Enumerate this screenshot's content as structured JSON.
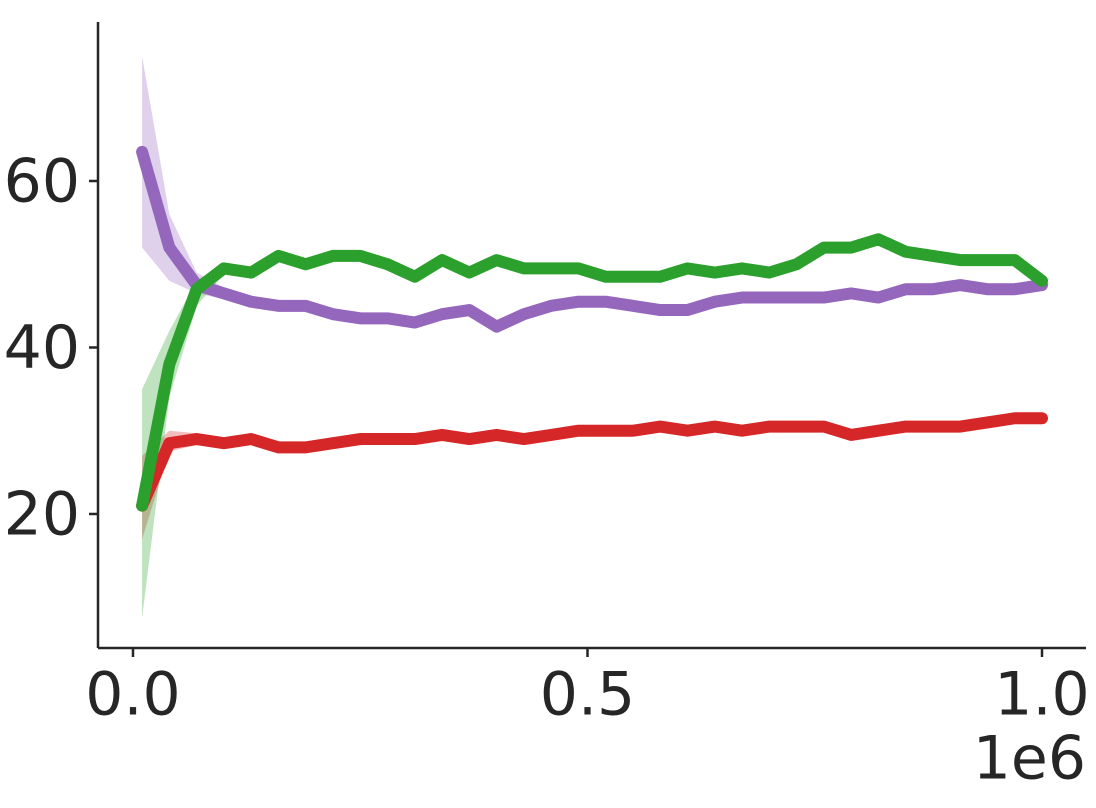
{
  "chart_data": {
    "type": "line",
    "x": [
      10000,
      40000,
      70000,
      100000,
      130000,
      160000,
      190000,
      220000,
      250000,
      280000,
      310000,
      340000,
      370000,
      400000,
      430000,
      460000,
      490000,
      520000,
      550000,
      580000,
      610000,
      640000,
      670000,
      700000,
      730000,
      760000,
      790000,
      820000,
      850000,
      880000,
      910000,
      940000,
      970000,
      1000000
    ],
    "series": [
      {
        "color": "#d62728",
        "values": [
          21,
          28.5,
          29,
          28.5,
          29,
          28,
          28,
          28.5,
          29,
          29,
          29,
          29.5,
          29,
          29.5,
          29,
          29.5,
          30,
          30,
          30,
          30.5,
          30,
          30.5,
          30,
          30.5,
          30.5,
          30.5,
          29.5,
          30,
          30.5,
          30.5,
          30.5,
          31,
          31.5,
          31.5
        ],
        "lower": [
          17,
          27.5,
          28.3,
          27.8,
          28.3,
          27.3,
          27.3,
          27.8,
          28.3,
          28.3,
          28.3,
          28.8,
          28.3,
          28.8,
          28.3,
          28.8,
          29.3,
          29.3,
          29.3,
          29.8,
          29.3,
          29.8,
          29.3,
          29.8,
          29.8,
          29.8,
          28.8,
          29.3,
          29.8,
          29.8,
          29.8,
          30.3,
          30.8,
          30.8
        ],
        "upper": [
          27,
          30,
          29.7,
          29.2,
          29.7,
          28.7,
          28.7,
          29.2,
          29.7,
          29.7,
          29.7,
          30.2,
          29.7,
          30.2,
          29.7,
          30.2,
          30.7,
          30.7,
          30.7,
          31.2,
          30.7,
          31.2,
          30.7,
          31.2,
          31.2,
          31.2,
          30.2,
          30.7,
          31.2,
          31.2,
          31.2,
          31.7,
          32.2,
          32.2
        ]
      },
      {
        "color": "#9467bd",
        "values": [
          63.5,
          52,
          47.5,
          46.5,
          45.5,
          45,
          45,
          44,
          43.5,
          43.5,
          43,
          44,
          44.5,
          42.5,
          44,
          45,
          45.5,
          45.5,
          45,
          44.5,
          44.5,
          45.5,
          46,
          46,
          46,
          46,
          46.5,
          46,
          47,
          47,
          47.5,
          47,
          47,
          47.5
        ],
        "lower": [
          52,
          48,
          46.5,
          45.8,
          44.8,
          44.3,
          44.3,
          43.3,
          42.8,
          42.8,
          42.3,
          43.3,
          43.8,
          41.8,
          43.3,
          44.3,
          44.8,
          44.8,
          44.3,
          43.8,
          43.8,
          44.8,
          45.3,
          45.3,
          45.3,
          45.3,
          45.8,
          45.3,
          46.3,
          46.3,
          46.8,
          46.3,
          46.3,
          46.8
        ],
        "upper": [
          75,
          56,
          49,
          47.2,
          46.2,
          45.7,
          45.7,
          44.7,
          44.2,
          44.2,
          43.7,
          44.7,
          45.2,
          43.2,
          44.7,
          45.7,
          46.2,
          46.2,
          45.7,
          45.2,
          45.2,
          46.2,
          46.7,
          46.7,
          46.7,
          46.7,
          47.2,
          46.7,
          47.7,
          47.7,
          48.2,
          47.7,
          47.7,
          48.2
        ]
      },
      {
        "color": "#2ca02c",
        "values": [
          21,
          38,
          47,
          49.5,
          49,
          51,
          50,
          51,
          51,
          50,
          48.5,
          50.5,
          49,
          50.5,
          49.5,
          49.5,
          49.5,
          48.5,
          48.5,
          48.5,
          49.5,
          49,
          49.5,
          49,
          50,
          52,
          52,
          53,
          51.5,
          51,
          50.5,
          50.5,
          50.5,
          48
        ],
        "lower": [
          7.5,
          34,
          45,
          48.8,
          48.3,
          50.3,
          49.3,
          50.3,
          50.3,
          49.3,
          47.8,
          49.8,
          48.3,
          49.8,
          48.8,
          48.8,
          48.8,
          47.8,
          47.8,
          47.8,
          48.8,
          48.3,
          48.8,
          48.3,
          49.3,
          51.3,
          51.3,
          52.3,
          50.8,
          50.3,
          49.8,
          49.8,
          49.8,
          47.3
        ],
        "upper": [
          35,
          42,
          48,
          50.2,
          49.7,
          51.7,
          50.7,
          51.7,
          51.7,
          50.7,
          49.2,
          51.2,
          49.7,
          51.2,
          50.2,
          50.2,
          50.2,
          49.2,
          49.2,
          49.2,
          50.2,
          49.7,
          50.2,
          49.7,
          50.7,
          52.7,
          52.7,
          53.7,
          52.2,
          51.7,
          51.2,
          51.2,
          51.2,
          48.7
        ]
      }
    ],
    "xlim": [
      -38500,
      1048400
    ],
    "ylim": [
      3.9,
      79.1
    ],
    "xticks": [
      {
        "value": 0,
        "label": "0.0"
      },
      {
        "value": 500000,
        "label": "0.5"
      },
      {
        "value": 1000000,
        "label": "1.0"
      }
    ],
    "yticks": [
      20,
      40,
      60
    ],
    "x_offset_label": "1e6"
  }
}
